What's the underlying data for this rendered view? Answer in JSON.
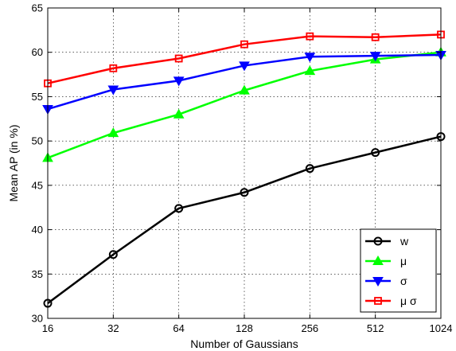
{
  "chart_data": {
    "type": "line",
    "title": "",
    "xlabel": "Number of Gaussians",
    "ylabel": "Mean AP (in %)",
    "x": [
      16,
      32,
      64,
      128,
      256,
      512,
      1024
    ],
    "x_tick_labels": [
      "16",
      "32",
      "64",
      "128",
      "256",
      "512",
      "1024"
    ],
    "x_scale": "log2",
    "ylim": [
      30,
      65
    ],
    "y_ticks": [
      30,
      35,
      40,
      45,
      50,
      55,
      60,
      65
    ],
    "grid": true,
    "legend_position": "bottom-right",
    "series": [
      {
        "name": "w",
        "marker": "circle",
        "color": "#000000",
        "fill": "none",
        "values": [
          31.7,
          37.2,
          42.4,
          44.2,
          46.9,
          48.7,
          50.5
        ]
      },
      {
        "name": "μ",
        "marker": "triangle-up",
        "color": "#00ff00",
        "fill": "#00ff00",
        "values": [
          48.1,
          50.9,
          53.0,
          55.7,
          57.9,
          59.2,
          60.0
        ]
      },
      {
        "name": "σ",
        "marker": "triangle-down",
        "color": "#0000ff",
        "fill": "#0000ff",
        "values": [
          53.6,
          55.8,
          56.8,
          58.5,
          59.5,
          59.6,
          59.7
        ]
      },
      {
        "name": "μ σ",
        "marker": "square",
        "color": "#ff0000",
        "fill": "none",
        "values": [
          56.5,
          58.2,
          59.3,
          60.9,
          61.8,
          61.7,
          62.0
        ]
      }
    ]
  }
}
